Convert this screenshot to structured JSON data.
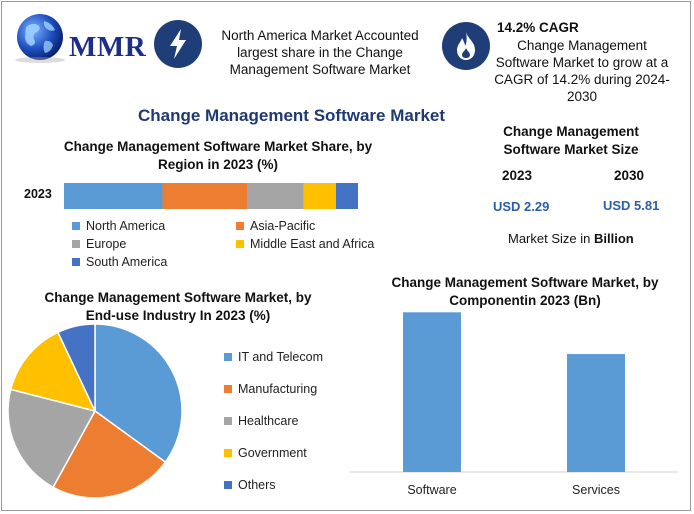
{
  "logo": {
    "text": "MMR"
  },
  "header": {
    "box1": "North America Market Accounted largest share in the Change Management Software Market",
    "cagr_title": "14.2% CAGR",
    "box2": "Change Management Software Market to grow at a CAGR of 14.2% during 2024-2030"
  },
  "main_title": "Change Management Software Market",
  "market_size": {
    "title": "Change Management Software Market Size",
    "year1": "2023",
    "year2": "2030",
    "value1": "USD 2.29",
    "value2": "USD 5.81",
    "note_prefix": "Market Size in ",
    "note_bold": "Billion"
  },
  "colors": {
    "blue": "#5b9bd5",
    "orange": "#ed7d31",
    "gray": "#a5a5a5",
    "yellow": "#ffc000",
    "darkblue": "#4472c4",
    "title": "#1f3a70",
    "badge": "#1f3e78",
    "usd": "#2b5ea8"
  },
  "icons": [
    "globe-icon",
    "lightning-icon",
    "flame-icon"
  ],
  "chart_data": [
    {
      "type": "bar",
      "orientation": "horizontal-stacked",
      "title": "Change Management Software Market Share, by Region in 2023 (%)",
      "categories": [
        "2023"
      ],
      "series": [
        {
          "name": "North America",
          "values": [
            33.5
          ],
          "color": "#5b9bd5"
        },
        {
          "name": "Asia-Pacific",
          "values": [
            29
          ],
          "color": "#ed7d31"
        },
        {
          "name": "Europe",
          "values": [
            19
          ],
          "color": "#a5a5a5"
        },
        {
          "name": "Middle East and Africa",
          "values": [
            11
          ],
          "color": "#ffc000"
        },
        {
          "name": "South America",
          "values": [
            7.5
          ],
          "color": "#4472c4"
        }
      ],
      "legend": "bottom"
    },
    {
      "type": "pie",
      "title": "Change Management Software Market, by End-use Industry In 2023 (%)",
      "labels": [
        "IT and Telecom",
        "Manufacturing",
        "Healthcare",
        "Government",
        "Others"
      ],
      "values": [
        35,
        23,
        21,
        14,
        7
      ],
      "colors": [
        "#5b9bd5",
        "#ed7d31",
        "#a5a5a5",
        "#ffc000",
        "#4472c4"
      ],
      "legend": "right"
    },
    {
      "type": "bar",
      "title": "Change Management Software Market, by Componentin 2023 (Bn)",
      "categories": [
        "Software",
        "Services"
      ],
      "values": [
        1.3,
        0.96
      ],
      "ylim": [
        0,
        1.4
      ],
      "color": "#5b9bd5",
      "grid": false
    }
  ]
}
